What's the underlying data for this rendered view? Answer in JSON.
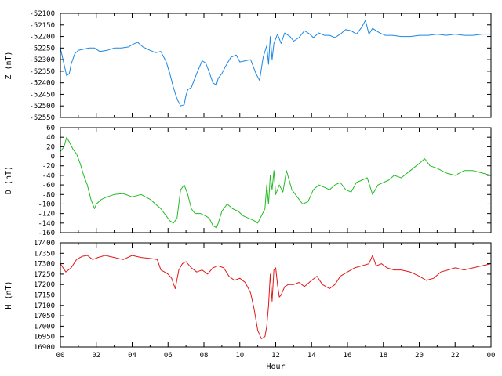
{
  "chart_data": [
    {
      "type": "line",
      "ylabel": "Z (nT)",
      "ylim": [
        -52550,
        -52100
      ],
      "yticks": [
        -52550,
        -52500,
        -52450,
        -52400,
        -52350,
        -52300,
        -52250,
        -52200,
        -52150,
        -52100
      ],
      "xlim": [
        0,
        24
      ],
      "grid": false,
      "color": "#1a86e6",
      "series": [
        {
          "x": [
            0,
            0.2,
            0.35,
            0.5,
            0.6,
            0.8,
            1.0,
            1.3,
            1.6,
            1.9,
            2.2,
            2.6,
            3.0,
            3.4,
            3.8,
            4.0,
            4.3,
            4.6,
            5.0,
            5.3,
            5.6,
            5.9,
            6.1,
            6.3,
            6.5,
            6.7,
            6.9,
            7.0,
            7.1,
            7.3,
            7.6,
            7.9,
            8.1,
            8.3,
            8.5,
            8.7,
            8.8,
            9.0,
            9.2,
            9.5,
            9.8,
            10.0,
            10.3,
            10.6,
            10.9,
            11.1,
            11.3,
            11.5,
            11.6,
            11.7,
            11.8,
            11.9,
            12.1,
            12.3,
            12.5,
            12.8,
            13.0,
            13.3,
            13.6,
            13.9,
            14.1,
            14.4,
            14.7,
            15.0,
            15.3,
            15.6,
            15.9,
            16.2,
            16.5,
            16.8,
            17.0,
            17.2,
            17.4,
            17.6,
            17.8,
            18.1,
            18.5,
            19,
            19.5,
            20,
            20.5,
            21,
            21.5,
            22,
            22.5,
            23,
            23.5,
            24
          ],
          "y": [
            -52250,
            -52320,
            -52370,
            -52360,
            -52320,
            -52275,
            -52260,
            -52255,
            -52250,
            -52250,
            -52265,
            -52260,
            -52250,
            -52250,
            -52245,
            -52235,
            -52225,
            -52245,
            -52260,
            -52270,
            -52265,
            -52310,
            -52360,
            -52420,
            -52470,
            -52500,
            -52495,
            -52455,
            -52430,
            -52420,
            -52360,
            -52305,
            -52315,
            -52355,
            -52400,
            -52410,
            -52380,
            -52360,
            -52330,
            -52290,
            -52280,
            -52310,
            -52305,
            -52300,
            -52360,
            -52390,
            -52290,
            -52240,
            -52320,
            -52200,
            -52300,
            -52230,
            -52190,
            -52230,
            -52185,
            -52200,
            -52220,
            -52205,
            -52175,
            -52190,
            -52205,
            -52185,
            -52195,
            -52195,
            -52205,
            -52190,
            -52170,
            -52175,
            -52190,
            -52160,
            -52130,
            -52190,
            -52165,
            -52175,
            -52185,
            -52195,
            -52195,
            -52200,
            -52200,
            -52195,
            -52195,
            -52190,
            -52195,
            -52190,
            -52195,
            -52195,
            -52190,
            -52190
          ]
        }
      ]
    },
    {
      "type": "line",
      "ylabel": "D (nT)",
      "ylim": [
        -160,
        60
      ],
      "yticks": [
        -160,
        -140,
        -120,
        -100,
        -80,
        -60,
        -40,
        -20,
        0,
        20,
        40,
        60
      ],
      "xlim": [
        0,
        24
      ],
      "grid": false,
      "color": "#22bb22",
      "series": [
        {
          "x": [
            0,
            0.2,
            0.35,
            0.5,
            0.7,
            0.9,
            1.1,
            1.3,
            1.5,
            1.7,
            1.9,
            2.0,
            2.3,
            2.6,
            3.0,
            3.5,
            4.0,
            4.5,
            5.0,
            5.3,
            5.6,
            5.9,
            6.1,
            6.3,
            6.5,
            6.7,
            6.9,
            7.1,
            7.3,
            7.5,
            7.8,
            8.1,
            8.3,
            8.5,
            8.7,
            8.8,
            9.0,
            9.3,
            9.6,
            9.9,
            10.2,
            10.5,
            10.8,
            11.0,
            11.2,
            11.4,
            11.5,
            11.6,
            11.7,
            11.8,
            11.9,
            12.0,
            12.2,
            12.4,
            12.6,
            12.9,
            13.2,
            13.5,
            13.8,
            14.1,
            14.4,
            14.7,
            15.0,
            15.3,
            15.6,
            15.9,
            16.2,
            16.5,
            16.8,
            17.1,
            17.4,
            17.7,
            18.0,
            18.3,
            18.6,
            19,
            19.5,
            20,
            20.3,
            20.6,
            21,
            21.5,
            22,
            22.5,
            23,
            23.5,
            24
          ],
          "y": [
            10,
            20,
            40,
            30,
            15,
            5,
            -15,
            -40,
            -60,
            -90,
            -110,
            -100,
            -90,
            -85,
            -80,
            -78,
            -85,
            -80,
            -90,
            -100,
            -110,
            -125,
            -135,
            -140,
            -130,
            -70,
            -60,
            -80,
            -110,
            -120,
            -120,
            -125,
            -130,
            -145,
            -150,
            -140,
            -115,
            -100,
            -110,
            -115,
            -125,
            -130,
            -135,
            -140,
            -125,
            -110,
            -60,
            -100,
            -40,
            -70,
            -30,
            -80,
            -60,
            -75,
            -30,
            -70,
            -85,
            -100,
            -95,
            -70,
            -60,
            -65,
            -70,
            -60,
            -55,
            -70,
            -75,
            -55,
            -50,
            -45,
            -80,
            -60,
            -55,
            -50,
            -40,
            -45,
            -30,
            -15,
            -5,
            -20,
            -25,
            -35,
            -40,
            -30,
            -30,
            -35,
            -40
          ]
        }
      ]
    },
    {
      "type": "line",
      "ylabel": "H (nT)",
      "xlabel": "Hour",
      "ylim": [
        16900,
        17400
      ],
      "yticks": [
        16900,
        16950,
        17000,
        17050,
        17100,
        17150,
        17200,
        17250,
        17300,
        17350,
        17400
      ],
      "xlim": [
        0,
        24
      ],
      "xticks": [
        "00",
        "02",
        "04",
        "06",
        "08",
        "10",
        "12",
        "14",
        "16",
        "18",
        "20",
        "22",
        "00"
      ],
      "grid": false,
      "color": "#e01818",
      "series": [
        {
          "x": [
            0,
            0.3,
            0.6,
            0.9,
            1.2,
            1.5,
            1.8,
            2.1,
            2.5,
            3.0,
            3.5,
            4.0,
            4.5,
            5.0,
            5.4,
            5.6,
            5.8,
            6.0,
            6.2,
            6.4,
            6.6,
            6.8,
            7.0,
            7.3,
            7.6,
            7.9,
            8.2,
            8.5,
            8.8,
            9.1,
            9.4,
            9.7,
            10.0,
            10.3,
            10.6,
            10.8,
            11.0,
            11.2,
            11.4,
            11.5,
            11.6,
            11.7,
            11.8,
            11.9,
            12.0,
            12.1,
            12.2,
            12.3,
            12.5,
            12.7,
            13.0,
            13.3,
            13.6,
            14.0,
            14.3,
            14.6,
            15.0,
            15.3,
            15.6,
            16.0,
            16.4,
            16.8,
            17.2,
            17.4,
            17.6,
            17.9,
            18.2,
            18.6,
            19,
            19.5,
            20,
            20.4,
            20.8,
            21.2,
            21.6,
            22,
            22.5,
            23,
            23.5,
            24
          ],
          "y": [
            17300,
            17260,
            17280,
            17320,
            17335,
            17340,
            17320,
            17330,
            17340,
            17330,
            17320,
            17340,
            17330,
            17325,
            17320,
            17270,
            17260,
            17250,
            17230,
            17180,
            17270,
            17300,
            17310,
            17280,
            17260,
            17270,
            17250,
            17280,
            17290,
            17280,
            17240,
            17220,
            17230,
            17210,
            17160,
            17080,
            16980,
            16940,
            16950,
            17000,
            17100,
            17250,
            17120,
            17270,
            17280,
            17200,
            17140,
            17150,
            17190,
            17200,
            17200,
            17210,
            17190,
            17220,
            17240,
            17200,
            17180,
            17200,
            17240,
            17260,
            17280,
            17290,
            17300,
            17340,
            17290,
            17300,
            17280,
            17270,
            17270,
            17260,
            17240,
            17220,
            17230,
            17260,
            17270,
            17280,
            17270,
            17280,
            17290,
            17300
          ]
        }
      ]
    }
  ]
}
